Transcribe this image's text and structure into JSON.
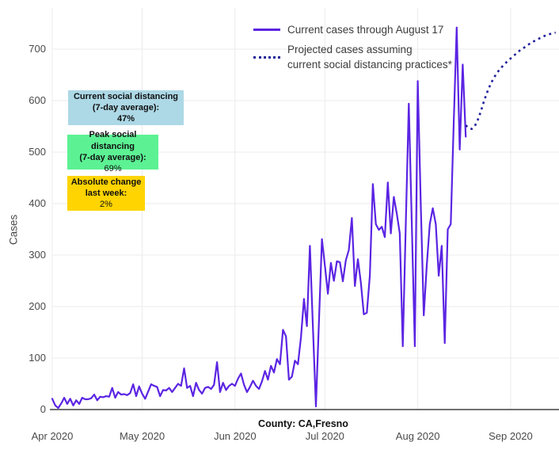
{
  "axes": {
    "ylabel": "Cases",
    "xlabel": "County: CA,Fresno"
  },
  "legend": {
    "current_label": "Current cases through August 17",
    "projected_label_line1": "Projected cases assuming",
    "projected_label_line2": "current social distancing practices*"
  },
  "info_boxes": {
    "current": {
      "line1": "Current social distancing",
      "line2": "(7-day average):",
      "value": "47%",
      "bg": "#ADD8E6"
    },
    "peak": {
      "line1": "Peak social distancing",
      "line2": "(7-day average):",
      "value": "69%",
      "bg": "#5CF294"
    },
    "change": {
      "line1": "Absolute change",
      "line2": "last week:",
      "value": "2%",
      "bg": "#FFD400"
    }
  },
  "colors": {
    "current_line": "#5B24E3",
    "projected_line": "#20209A",
    "grid": "#ebebeb",
    "axis": "#404040"
  },
  "chart_data": {
    "type": "line",
    "title": "",
    "xlabel": "County: CA,Fresno",
    "ylabel": "Cases",
    "ylim": [
      0,
      760
    ],
    "yticks": [
      0,
      100,
      200,
      300,
      400,
      500,
      600,
      700
    ],
    "day0_date": "2020-04-01",
    "xticks": [
      {
        "label": "Apr 2020",
        "day": 0
      },
      {
        "label": "May 2020",
        "day": 30
      },
      {
        "label": "Jun 2020",
        "day": 61
      },
      {
        "label": "Jul 2020",
        "day": 91
      },
      {
        "label": "Aug 2020",
        "day": 122
      },
      {
        "label": "Sep 2020",
        "day": 153
      }
    ],
    "grid": true,
    "legend_position": "top-right",
    "series": [
      {
        "name": "Current cases through August 17",
        "style": "solid",
        "color": "#5B24E3",
        "start_day": 0,
        "values": [
          21,
          8,
          3,
          12,
          23,
          11,
          21,
          8,
          18,
          11,
          23,
          20,
          20,
          22,
          29,
          18,
          25,
          24,
          26,
          25,
          42,
          23,
          34,
          29,
          30,
          28,
          32,
          49,
          26,
          45,
          31,
          21,
          35,
          49,
          46,
          44,
          26,
          38,
          37,
          42,
          34,
          42,
          50,
          46,
          80,
          42,
          46,
          26,
          52,
          38,
          31,
          42,
          44,
          40,
          48,
          92,
          34,
          52,
          38,
          46,
          50,
          46,
          60,
          70,
          48,
          34,
          44,
          56,
          46,
          40,
          55,
          75,
          58,
          85,
          72,
          98,
          88,
          155,
          142,
          58,
          64,
          95,
          88,
          140,
          215,
          162,
          318,
          160,
          6,
          170,
          331,
          280,
          225,
          285,
          250,
          288,
          286,
          249,
          290,
          310,
          372,
          240,
          292,
          246,
          185,
          188,
          260,
          438,
          360,
          349,
          355,
          335,
          441,
          342,
          413,
          380,
          342,
          123,
          360,
          594,
          360,
          123,
          638,
          400,
          183,
          280,
          360,
          391,
          360,
          260,
          318,
          129,
          350,
          360,
          560,
          742,
          505,
          670,
          530
        ]
      },
      {
        "name": "Projected cases assuming current social distancing practices*",
        "style": "dotted",
        "color": "#20209A",
        "start_day": 138,
        "values": [
          552,
          547,
          545,
          550,
          562,
          578,
          597,
          614,
          628,
          640,
          650,
          658,
          665,
          671,
          677,
          682,
          687,
          692,
          697,
          701,
          705,
          709,
          713,
          716,
          719,
          722,
          725,
          727,
          729,
          731,
          732
        ]
      }
    ]
  }
}
